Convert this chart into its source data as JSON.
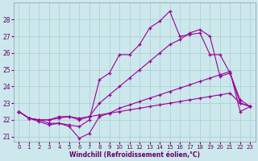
{
  "background_color": "#cce8ec",
  "grid_color": "#aacccc",
  "line_color": "#990099",
  "xlabel": "Windchill (Refroidissement éolien,°C)",
  "xlim": [
    -0.5,
    23.5
  ],
  "ylim": [
    20.7,
    29.0
  ],
  "yticks": [
    21,
    22,
    23,
    24,
    25,
    26,
    27,
    28
  ],
  "xticks": [
    0,
    1,
    2,
    3,
    4,
    5,
    6,
    7,
    8,
    9,
    10,
    11,
    12,
    13,
    14,
    15,
    16,
    17,
    18,
    19,
    20,
    21,
    22,
    23
  ],
  "series": [
    {
      "x": [
        0,
        1,
        2,
        3,
        4,
        5,
        6,
        7,
        8,
        9,
        10,
        11,
        12,
        13,
        14,
        15,
        16,
        17,
        18,
        19,
        20,
        21,
        22,
        23
      ],
      "y": [
        22.5,
        22.1,
        22.0,
        22.0,
        22.1,
        22.2,
        22.1,
        22.2,
        22.3,
        22.4,
        22.5,
        22.6,
        22.7,
        22.8,
        22.9,
        23.0,
        23.1,
        23.2,
        23.3,
        23.4,
        23.5,
        23.6,
        23.0,
        22.8
      ]
    },
    {
      "x": [
        0,
        1,
        2,
        3,
        4,
        5,
        6,
        7,
        8,
        9,
        10,
        11,
        12,
        13,
        14,
        15,
        16,
        17,
        18,
        19,
        20,
        21,
        22,
        23
      ],
      "y": [
        22.5,
        22.1,
        22.0,
        22.0,
        22.2,
        22.2,
        22.0,
        22.2,
        23.0,
        23.5,
        24.0,
        24.5,
        25.0,
        25.5,
        26.0,
        26.5,
        26.8,
        27.2,
        27.4,
        27.0,
        24.6,
        24.8,
        23.2,
        22.8
      ]
    },
    {
      "x": [
        0,
        1,
        2,
        3,
        4,
        5,
        6,
        7,
        8,
        9,
        10,
        11,
        12,
        13,
        14,
        15,
        16,
        17,
        18,
        19,
        20,
        21,
        22,
        23
      ],
      "y": [
        22.5,
        22.1,
        22.0,
        21.8,
        21.8,
        21.7,
        21.6,
        22.0,
        24.4,
        24.8,
        25.9,
        25.9,
        26.5,
        27.5,
        27.9,
        28.5,
        27.0,
        27.1,
        27.2,
        25.9,
        25.9,
        24.8,
        23.0,
        22.8
      ]
    },
    {
      "x": [
        0,
        1,
        2,
        3,
        4,
        5,
        6,
        7,
        8,
        9,
        10,
        11,
        12,
        13,
        14,
        15,
        16,
        17,
        18,
        19,
        20,
        21,
        22,
        23
      ],
      "y": [
        22.5,
        22.1,
        21.9,
        21.7,
        21.8,
        21.6,
        20.9,
        21.2,
        22.2,
        22.4,
        22.7,
        22.9,
        23.1,
        23.3,
        23.5,
        23.7,
        23.9,
        24.1,
        24.3,
        24.5,
        24.7,
        24.9,
        22.5,
        22.8
      ]
    }
  ]
}
